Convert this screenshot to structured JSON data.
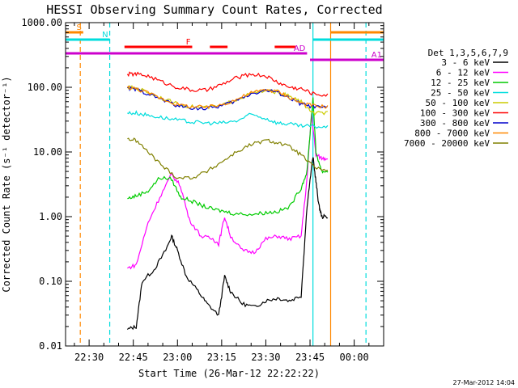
{
  "chart_data": {
    "type": "line",
    "title": "HESSI Observing Summary Count Rates, Corrected",
    "xlabel": "Start Time (26-Mar-12 22:22:22)",
    "ylabel": "Corrected Count Rate (s⁻¹ detector⁻¹)",
    "yscale": "log",
    "ylim": [
      0.01,
      1000
    ],
    "xlim_minutes": [
      -8,
      100
    ],
    "x_unit": "minutes after 22:30 UT",
    "x_ticks": [
      {
        "t": 0,
        "label": "22:30"
      },
      {
        "t": 15,
        "label": "22:45"
      },
      {
        "t": 30,
        "label": "23:00"
      },
      {
        "t": 45,
        "label": "23:15"
      },
      {
        "t": 60,
        "label": "23:30"
      },
      {
        "t": 75,
        "label": "23:45"
      },
      {
        "t": 90,
        "label": "00:00"
      }
    ],
    "y_ticks": [
      {
        "v": 0.01,
        "label": "0.01"
      },
      {
        "v": 0.1,
        "label": "0.10"
      },
      {
        "v": 1,
        "label": "1.00"
      },
      {
        "v": 10,
        "label": "10.00"
      },
      {
        "v": 100,
        "label": "100.00"
      },
      {
        "v": 1000,
        "label": "1000.00"
      }
    ],
    "legend_title": "Det 1,3,5,6,7,9",
    "legend_position": "right",
    "series": [
      {
        "name": "3 - 6 keV",
        "color": "#000000",
        "points": [
          [
            13,
            0.018
          ],
          [
            16,
            0.02
          ],
          [
            18,
            0.1
          ],
          [
            22,
            0.15
          ],
          [
            26,
            0.3
          ],
          [
            28,
            0.5
          ],
          [
            30,
            0.3
          ],
          [
            33,
            0.12
          ],
          [
            37,
            0.07
          ],
          [
            40,
            0.045
          ],
          [
            44,
            0.03
          ],
          [
            46,
            0.12
          ],
          [
            48,
            0.07
          ],
          [
            52,
            0.045
          ],
          [
            56,
            0.04
          ],
          [
            60,
            0.05
          ],
          [
            64,
            0.055
          ],
          [
            68,
            0.05
          ],
          [
            72,
            0.06
          ],
          [
            74,
            1.5
          ],
          [
            76,
            8.5
          ],
          [
            77,
            3.5
          ],
          [
            78,
            1.5
          ],
          [
            79,
            1.0
          ],
          [
            81,
            1.0
          ]
        ]
      },
      {
        "name": "6 - 12 keV",
        "color": "#ff00ff",
        "points": [
          [
            13,
            0.16
          ],
          [
            16,
            0.18
          ],
          [
            20,
            0.8
          ],
          [
            24,
            2.0
          ],
          [
            28,
            4.5
          ],
          [
            31,
            3.0
          ],
          [
            34,
            0.9
          ],
          [
            38,
            0.5
          ],
          [
            42,
            0.45
          ],
          [
            44,
            0.38
          ],
          [
            46,
            1.0
          ],
          [
            48,
            0.5
          ],
          [
            52,
            0.3
          ],
          [
            56,
            0.28
          ],
          [
            60,
            0.45
          ],
          [
            64,
            0.5
          ],
          [
            68,
            0.45
          ],
          [
            72,
            0.5
          ],
          [
            74,
            4.0
          ],
          [
            75.5,
            40
          ],
          [
            77,
            9
          ],
          [
            79,
            8
          ],
          [
            81,
            8
          ]
        ]
      },
      {
        "name": "12 - 25 keV",
        "color": "#00cc00",
        "points": [
          [
            13,
            1.9
          ],
          [
            16,
            2.1
          ],
          [
            20,
            2.5
          ],
          [
            24,
            4.0
          ],
          [
            28,
            3.8
          ],
          [
            31,
            2.0
          ],
          [
            34,
            1.8
          ],
          [
            38,
            1.5
          ],
          [
            42,
            1.3
          ],
          [
            46,
            1.2
          ],
          [
            50,
            1.1
          ],
          [
            56,
            1.1
          ],
          [
            60,
            1.15
          ],
          [
            64,
            1.2
          ],
          [
            68,
            1.4
          ],
          [
            72,
            2.8
          ],
          [
            74,
            5
          ],
          [
            76,
            70
          ],
          [
            77,
            10
          ],
          [
            79,
            5
          ],
          [
            81,
            5
          ]
        ]
      },
      {
        "name": "25 - 50 keV",
        "color": "#00dddd",
        "points": [
          [
            13,
            40
          ],
          [
            16,
            40
          ],
          [
            20,
            37
          ],
          [
            25,
            34
          ],
          [
            30,
            31
          ],
          [
            35,
            29
          ],
          [
            40,
            28
          ],
          [
            45,
            28
          ],
          [
            50,
            30
          ],
          [
            55,
            38
          ],
          [
            60,
            33
          ],
          [
            64,
            28
          ],
          [
            68,
            27
          ],
          [
            72,
            25
          ],
          [
            76,
            25
          ],
          [
            81,
            24
          ]
        ]
      },
      {
        "name": "50 - 100 keV",
        "color": "#cccc00",
        "points": [
          [
            13,
            100
          ],
          [
            16,
            97
          ],
          [
            20,
            85
          ],
          [
            25,
            67
          ],
          [
            30,
            55
          ],
          [
            35,
            50
          ],
          [
            40,
            49
          ],
          [
            45,
            52
          ],
          [
            50,
            65
          ],
          [
            55,
            80
          ],
          [
            60,
            88
          ],
          [
            64,
            85
          ],
          [
            68,
            72
          ],
          [
            72,
            60
          ],
          [
            76,
            40
          ],
          [
            81,
            40
          ]
        ]
      },
      {
        "name": "100 - 300 keV",
        "color": "#ff0000",
        "points": [
          [
            13,
            160
          ],
          [
            16,
            160
          ],
          [
            20,
            150
          ],
          [
            25,
            120
          ],
          [
            30,
            100
          ],
          [
            35,
            90
          ],
          [
            40,
            90
          ],
          [
            45,
            110
          ],
          [
            50,
            140
          ],
          [
            55,
            160
          ],
          [
            60,
            150
          ],
          [
            64,
            120
          ],
          [
            68,
            100
          ],
          [
            72,
            95
          ],
          [
            76,
            80
          ],
          [
            81,
            75
          ]
        ]
      },
      {
        "name": "300 - 800 keV",
        "color": "#0000cc",
        "points": [
          [
            13,
            98
          ],
          [
            16,
            92
          ],
          [
            20,
            80
          ],
          [
            25,
            64
          ],
          [
            30,
            52
          ],
          [
            35,
            48
          ],
          [
            40,
            47
          ],
          [
            45,
            52
          ],
          [
            50,
            62
          ],
          [
            55,
            80
          ],
          [
            60,
            90
          ],
          [
            64,
            84
          ],
          [
            68,
            68
          ],
          [
            72,
            55
          ],
          [
            76,
            50
          ],
          [
            81,
            48
          ]
        ]
      },
      {
        "name": "800 - 7000 keV",
        "color": "#ff8800",
        "points": [
          [
            13,
            100
          ],
          [
            16,
            95
          ],
          [
            20,
            82
          ],
          [
            25,
            66
          ],
          [
            30,
            54
          ],
          [
            35,
            50
          ],
          [
            40,
            49
          ],
          [
            45,
            54
          ],
          [
            50,
            65
          ],
          [
            55,
            82
          ],
          [
            60,
            92
          ],
          [
            64,
            86
          ],
          [
            68,
            70
          ],
          [
            72,
            57
          ],
          [
            76,
            52
          ],
          [
            81,
            50
          ]
        ]
      },
      {
        "name": "7000 - 20000 keV",
        "color": "#808000",
        "points": [
          [
            13,
            16
          ],
          [
            16,
            15
          ],
          [
            20,
            10
          ],
          [
            25,
            6
          ],
          [
            30,
            4
          ],
          [
            35,
            4
          ],
          [
            40,
            5
          ],
          [
            45,
            7
          ],
          [
            50,
            10
          ],
          [
            55,
            13
          ],
          [
            60,
            15
          ],
          [
            64,
            14
          ],
          [
            68,
            12
          ],
          [
            72,
            9
          ],
          [
            76,
            6
          ],
          [
            81,
            5
          ]
        ]
      }
    ],
    "vertical_markers": [
      {
        "t": -3,
        "color": "#ff8800",
        "dashed": true
      },
      {
        "t": 7,
        "color": "#00dddd",
        "dashed": true
      },
      {
        "t": 76,
        "color": "#00dddd",
        "dashed": false
      },
      {
        "t": 82,
        "color": "#ff8800",
        "dashed": false
      },
      {
        "t": 94,
        "color": "#00dddd",
        "dashed": true
      }
    ],
    "flag_bars": [
      {
        "label": "S",
        "color": "#ff8800",
        "segments": [
          [
            -8,
            -2
          ],
          [
            82,
            100
          ]
        ]
      },
      {
        "label": "N",
        "color": "#00dddd",
        "segments": [
          [
            -8,
            7
          ],
          [
            76,
            100
          ]
        ]
      },
      {
        "label": "F",
        "color": "#ff0000",
        "segments": [
          [
            12,
            35
          ],
          [
            41,
            47
          ],
          [
            63,
            70
          ]
        ]
      },
      {
        "label": "AD",
        "color": "#cc00cc",
        "segments": [
          [
            -8,
            74
          ]
        ]
      },
      {
        "label": "A1",
        "color": "#cc00cc",
        "segments": [
          [
            75,
            100
          ]
        ]
      }
    ]
  },
  "footer_stamp": "27-Mar-2012 14:04"
}
